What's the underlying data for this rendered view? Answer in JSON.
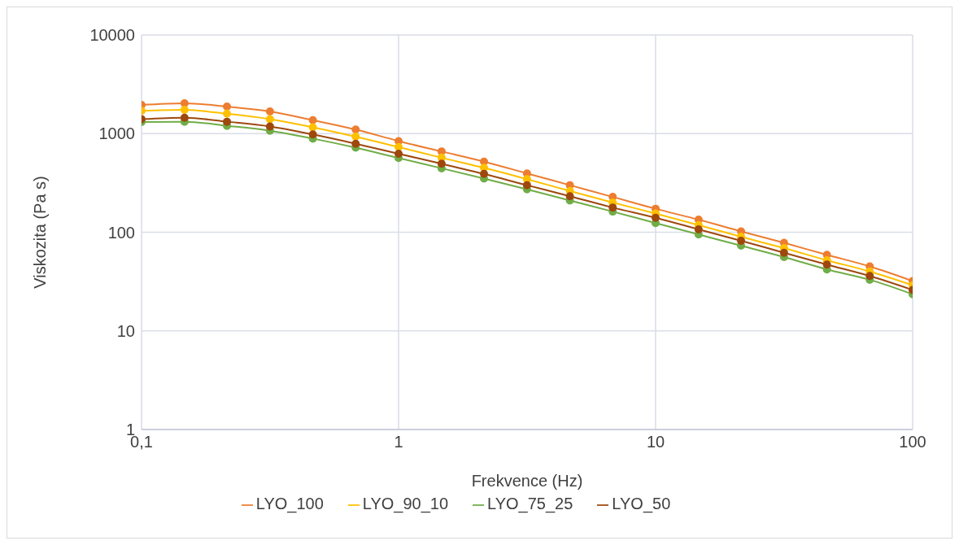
{
  "chart_data": {
    "type": "line",
    "xlabel": "Frekvence (Hz)",
    "ylabel": "Viskozita (Pa s)",
    "x": [
      0.1,
      0.147,
      0.215,
      0.316,
      0.464,
      0.681,
      1,
      1.47,
      2.15,
      3.16,
      4.64,
      6.81,
      10,
      14.7,
      21.5,
      31.6,
      46.4,
      68.1,
      100
    ],
    "series": [
      {
        "name": "LYO_100",
        "color": "#ed7d31",
        "values": [
          1950,
          2030,
          1880,
          1680,
          1370,
          1100,
          840,
          660,
          520,
          395,
          300,
          228,
          173,
          134,
          102,
          78,
          59,
          45,
          32
        ]
      },
      {
        "name": "LYO_90_10",
        "color": "#ffc000",
        "values": [
          1700,
          1740,
          1590,
          1400,
          1160,
          930,
          730,
          570,
          450,
          345,
          262,
          200,
          155,
          118,
          90,
          69,
          52,
          40,
          29
        ]
      },
      {
        "name": "LYO_75_25",
        "color": "#70ad47",
        "values": [
          1310,
          1320,
          1200,
          1070,
          890,
          720,
          565,
          445,
          350,
          272,
          210,
          162,
          124,
          95,
          73,
          56,
          42,
          33,
          23.5
        ]
      },
      {
        "name": "LYO_50",
        "color": "#9e480e",
        "values": [
          1400,
          1450,
          1320,
          1180,
          980,
          790,
          625,
          495,
          390,
          300,
          232,
          178,
          140,
          107,
          82,
          62,
          47,
          36,
          26
        ]
      }
    ],
    "log": "xy",
    "xlim": [
      0.1,
      100
    ],
    "xticks": [
      {
        "value": 0.1,
        "label": "0,1"
      },
      1,
      10,
      100
    ],
    "ylim": [
      1,
      10000
    ],
    "yticks": [
      1,
      10,
      100,
      1000,
      10000
    ],
    "grid": true,
    "legend": "bottom",
    "marker": "circle",
    "line_style": "solid"
  }
}
